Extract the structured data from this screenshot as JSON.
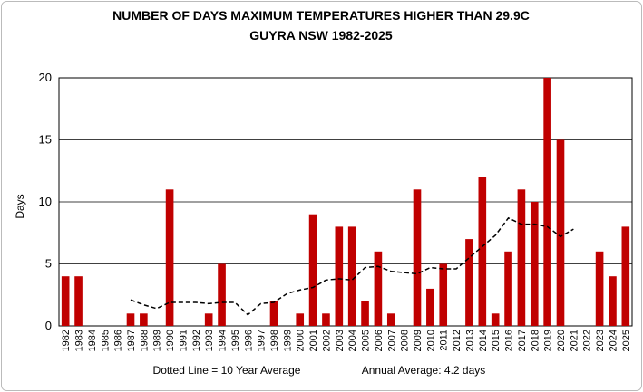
{
  "chart_data": {
    "type": "bar",
    "title": "NUMBER OF DAYS MAXIMUM TEMPERATURES HIGHER THAN 29.9C",
    "subtitle": "GUYRA NSW   1982-2025",
    "y_label": "Days",
    "annotations": [
      "Dotted Line = 10 Year Average",
      "Annual Average: 4.2 days"
    ],
    "categories": [
      "1982",
      "1983",
      "1984",
      "1985",
      "1986",
      "1987",
      "1988",
      "1989",
      "1990",
      "1991",
      "1992",
      "1993",
      "1994",
      "1995",
      "1996",
      "1997",
      "1998",
      "1999",
      "2000",
      "2001",
      "2002",
      "2003",
      "2004",
      "2005",
      "2006",
      "2007",
      "2008",
      "2009",
      "2010",
      "2011",
      "2012",
      "2013",
      "2014",
      "2015",
      "2016",
      "2017",
      "2018",
      "2019",
      "2020",
      "2021",
      "2022",
      "2023",
      "2024",
      "2025"
    ],
    "values": [
      4,
      4,
      0,
      0,
      0,
      1,
      1,
      0,
      11,
      0,
      0,
      1,
      5,
      0,
      0,
      0,
      2,
      0,
      1,
      9,
      1,
      8,
      8,
      2,
      6,
      1,
      0,
      11,
      3,
      5,
      0,
      7,
      12,
      1,
      6,
      11,
      10,
      20,
      15,
      0,
      0,
      6,
      4,
      8
    ],
    "color": "#c00000",
    "average_values": [
      null,
      null,
      null,
      null,
      null,
      2.1,
      1.7,
      1.4,
      1.9,
      1.9,
      1.9,
      1.8,
      1.9,
      1.9,
      0.9,
      1.8,
      1.9,
      2.6,
      2.9,
      3.1,
      3.7,
      3.8,
      3.7,
      4.7,
      4.8,
      4.4,
      4.3,
      4.2,
      4.7,
      4.6,
      4.6,
      5.5,
      6.4,
      7.3,
      8.7,
      8.2,
      8.2,
      8.0,
      7.2,
      7.8,
      null,
      null,
      null,
      null
    ],
    "average_color": "#000000",
    "ylim": [
      0,
      20
    ],
    "yticks": [
      0,
      5,
      10,
      15,
      20
    ],
    "grid": true
  }
}
